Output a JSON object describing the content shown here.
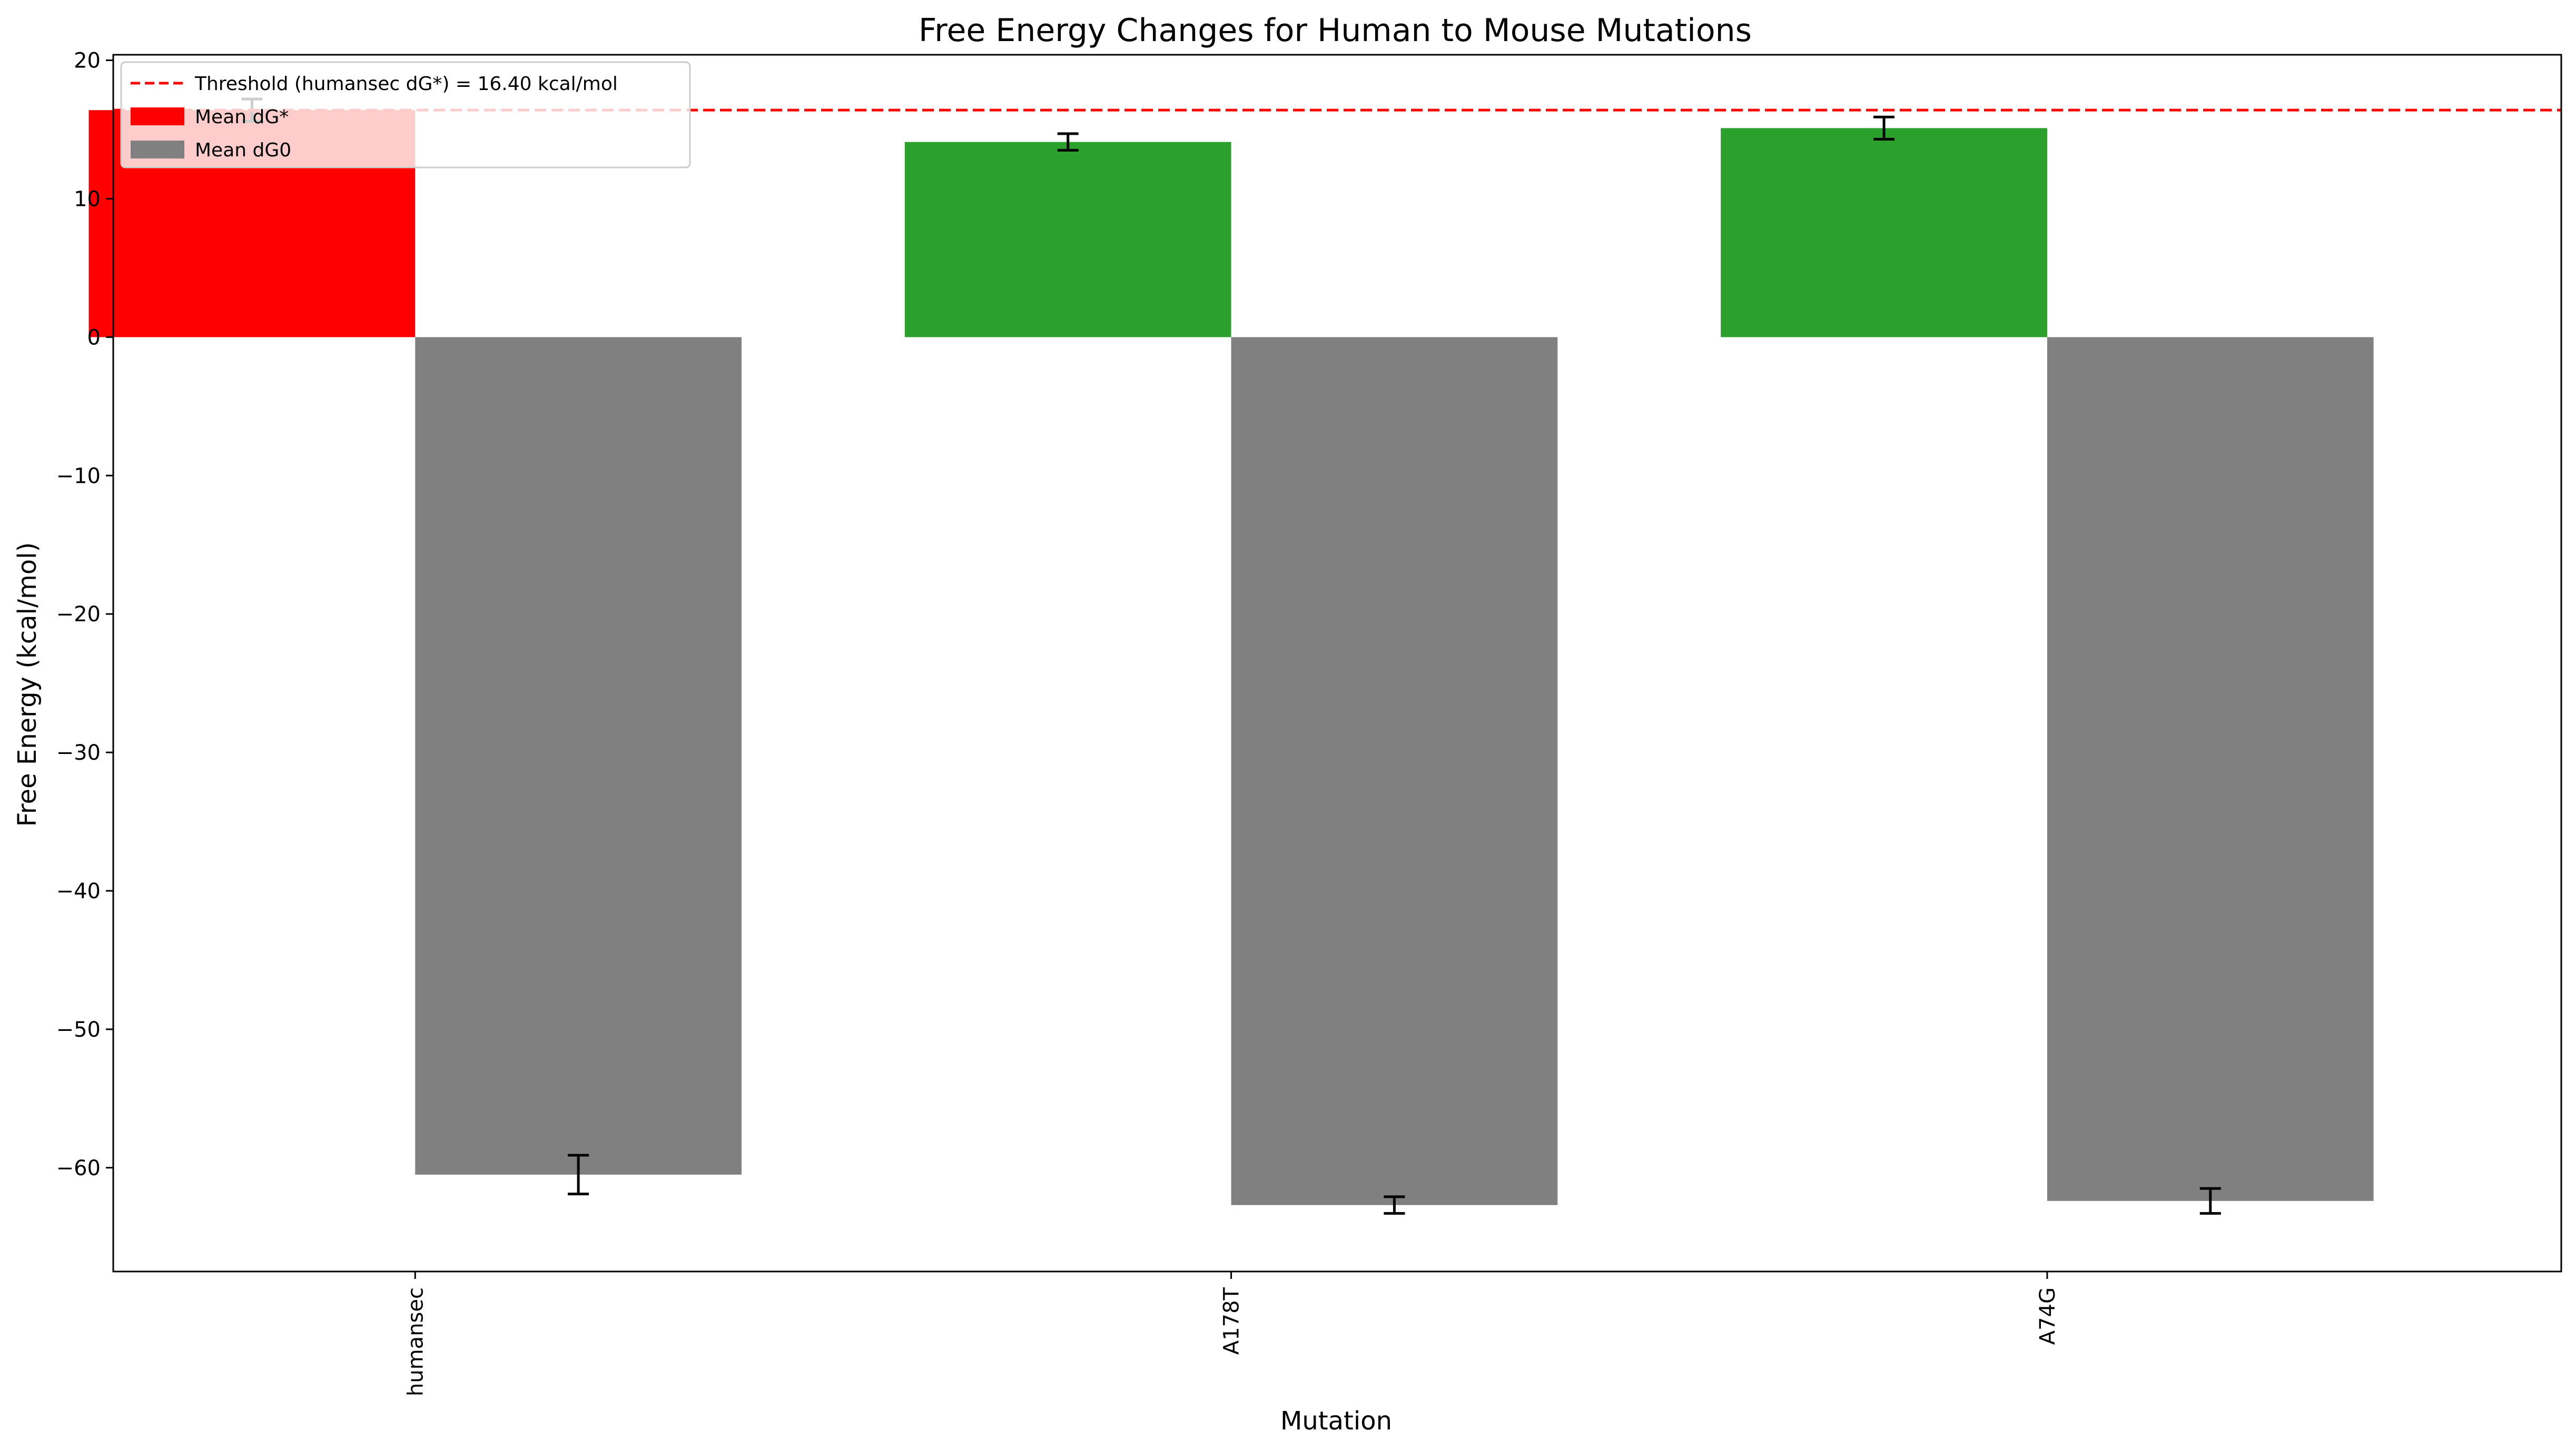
{
  "chart_data": {
    "type": "bar",
    "title": "Free Energy Changes for Human to Mouse Mutations",
    "xlabel": "Mutation",
    "ylabel": "Free Energy (kcal/mol)",
    "categories": [
      "humansec",
      "A178T",
      "A74G"
    ],
    "series": [
      {
        "name": "Mean dG*",
        "values": [
          16.4,
          14.1,
          15.1
        ],
        "errors": [
          0.8,
          0.6,
          0.8
        ],
        "colors": [
          "#ff0000",
          "#2ca02c",
          "#2ca02c"
        ]
      },
      {
        "name": "Mean dG0",
        "values": [
          -60.5,
          -62.7,
          -62.4
        ],
        "errors": [
          1.4,
          0.6,
          0.9
        ],
        "colors": [
          "#808080",
          "#808080",
          "#808080"
        ]
      }
    ],
    "threshold": {
      "label": "Threshold (humansec dG*) = 16.40 kcal/mol",
      "value": 16.4,
      "color": "#ff0000",
      "style": "dashed"
    },
    "ylim": [
      -67.5,
      20.4
    ],
    "yticks": [
      20,
      10,
      0,
      -10,
      -20,
      -30,
      -40,
      -50,
      -60
    ],
    "ytick_labels": [
      "20",
      "10",
      "0",
      "−10",
      "−20",
      "−30",
      "−40",
      "−50",
      "−60"
    ],
    "grid": false,
    "legend_position": "top-left",
    "legend": [
      {
        "label": "Threshold (humansec dG*) = 16.40 kcal/mol",
        "kind": "line",
        "color": "#ff0000"
      },
      {
        "label": "Mean dG*",
        "kind": "patch",
        "color": "#ff0000"
      },
      {
        "label": "Mean dG0",
        "kind": "patch",
        "color": "#808080"
      }
    ]
  }
}
